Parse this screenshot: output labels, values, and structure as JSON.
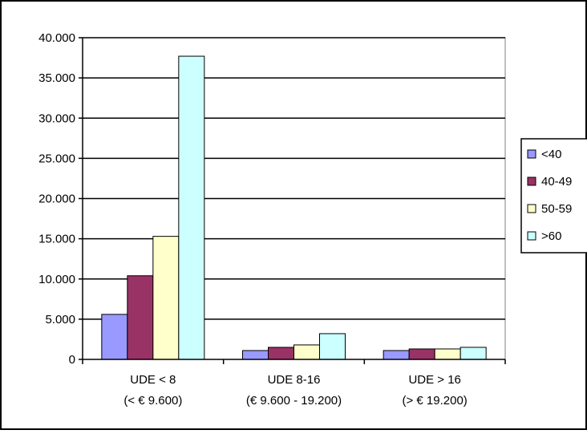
{
  "chart_data": {
    "type": "bar",
    "title": "",
    "xlabel": "",
    "ylabel": "",
    "categories": [
      [
        "UDE < 8",
        "(< € 9.600)"
      ],
      [
        "UDE 8-16",
        "(€ 9.600 - 19.200)"
      ],
      [
        "UDE > 16",
        "(> € 19.200)"
      ]
    ],
    "series": [
      {
        "name": "<40",
        "color": "#9999ff",
        "values": [
          5600,
          1100,
          1100
        ]
      },
      {
        "name": "40-49",
        "color": "#993366",
        "values": [
          10400,
          1500,
          1300
        ]
      },
      {
        "name": "50-59",
        "color": "#ffffcc",
        "values": [
          15300,
          1800,
          1300
        ]
      },
      {
        "name": ">60",
        "color": "#ccffff",
        "values": [
          37700,
          3200,
          1500
        ]
      }
    ],
    "ylim": [
      0,
      40000
    ],
    "yticks": [
      0,
      5000,
      10000,
      15000,
      20000,
      25000,
      30000,
      35000,
      40000
    ],
    "ytick_labels": [
      "0",
      "5.000",
      "10.000",
      "15.000",
      "20.000",
      "25.000",
      "30.000",
      "35.000",
      "40.000"
    ],
    "grid": true,
    "legend_position": "right",
    "plot_background": "#ffffff",
    "bar_outline": "#000000"
  }
}
